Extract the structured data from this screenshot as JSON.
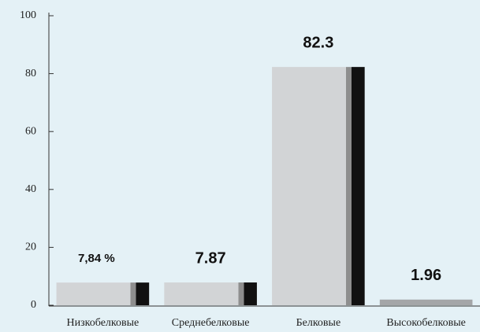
{
  "chart_data": {
    "type": "bar",
    "categories": [
      "Низкобелковые",
      "Среднебелковые",
      "Белковые",
      "Высокобелковые"
    ],
    "values": [
      7.84,
      7.87,
      82.3,
      1.96
    ],
    "value_labels": [
      "7,84 %",
      "7.87",
      "82.3",
      "1.96"
    ],
    "colors": [
      "#d2d4d6",
      "#d2d4d6",
      "#d2d4d6",
      "#a4a6a8"
    ],
    "ylim": [
      0,
      100
    ],
    "yticks": [
      0,
      20,
      40,
      60,
      80,
      100
    ],
    "grid": false
  }
}
